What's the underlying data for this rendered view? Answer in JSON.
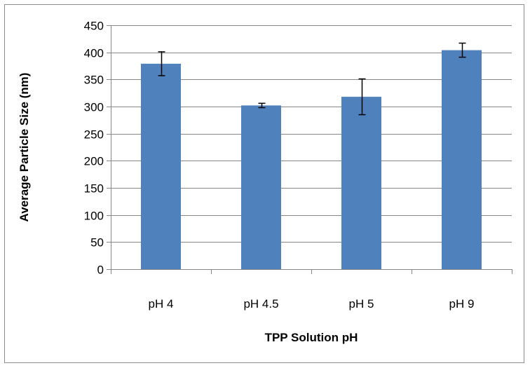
{
  "chart_data": {
    "type": "bar",
    "title": "",
    "xlabel": "TPP Solution pH",
    "ylabel": "Average Particle Size (nm)",
    "categories": [
      "pH 4",
      "pH 4.5",
      "pH 5",
      "pH 9"
    ],
    "series": [
      {
        "values": [
          379,
          302,
          318,
          404
        ],
        "error": [
          22,
          4,
          33,
          13
        ]
      }
    ],
    "ylim": [
      0,
      450
    ],
    "yticks": [
      0,
      50,
      100,
      150,
      200,
      250,
      300,
      350,
      400,
      450
    ],
    "grid": true,
    "legend": "none",
    "colors": {
      "bar": "#4f81bd",
      "grid": "#868686",
      "axis": "#868686",
      "error_bar": "#000000"
    }
  }
}
